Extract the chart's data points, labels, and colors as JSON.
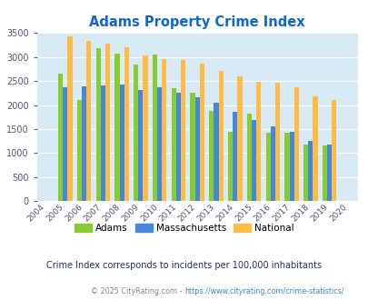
{
  "title": "Adams Property Crime Index",
  "years": [
    2004,
    2005,
    2006,
    2007,
    2008,
    2009,
    2010,
    2011,
    2012,
    2013,
    2014,
    2015,
    2016,
    2017,
    2018,
    2019,
    2020
  ],
  "adams": [
    null,
    2650,
    2100,
    3180,
    3070,
    2850,
    3060,
    2350,
    2250,
    1870,
    1450,
    1820,
    1420,
    1420,
    1180,
    1160,
    null
  ],
  "massachusetts": [
    null,
    2370,
    2390,
    2400,
    2430,
    2310,
    2360,
    2260,
    2170,
    2050,
    1850,
    1680,
    1550,
    1440,
    1250,
    1170,
    null
  ],
  "national": [
    null,
    3430,
    3340,
    3270,
    3210,
    3040,
    2960,
    2940,
    2870,
    2710,
    2590,
    2490,
    2460,
    2370,
    2180,
    2110,
    null
  ],
  "adams_color": "#88cc33",
  "mass_color": "#4488dd",
  "national_color": "#ffbb44",
  "bg_color": "#d8eaf5",
  "ylim": [
    0,
    3500
  ],
  "yticks": [
    0,
    500,
    1000,
    1500,
    2000,
    2500,
    3000,
    3500
  ],
  "grid_color": "#ffffff",
  "title_color": "#1166cc",
  "subtitle": "Crime Index corresponds to incidents per 100,000 inhabitants",
  "footer_prefix": "© 2025 CityRating.com - ",
  "footer_url": "https://www.cityrating.com/crime-statistics/",
  "subtitle_color": "#223366",
  "footer_color": "#888888",
  "footer_url_color": "#4488bb"
}
